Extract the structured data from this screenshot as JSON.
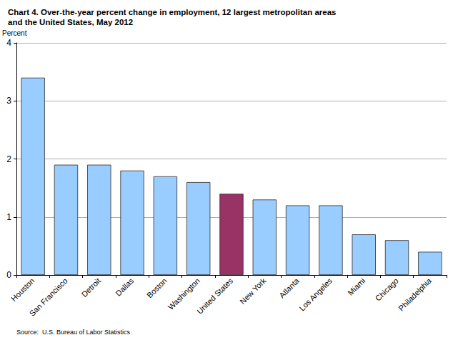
{
  "chart_data": {
    "type": "bar",
    "title": "Chart 4. Over-the-year percent change in employment, 12 largest metropolitan areas and the United States, May 2012",
    "y_label": "Percent",
    "source": "Source:  U.S. Bureau of Labor Statistics",
    "categories": [
      "Houston",
      "San Francisco",
      "Detroit",
      "Dallas",
      "Boston",
      "Washington",
      "United States",
      "New York",
      "Atlanta",
      "Los Angeles",
      "Miami",
      "Chicago",
      "Philadelphia"
    ],
    "values": [
      3.4,
      1.9,
      1.9,
      1.8,
      1.7,
      1.6,
      1.4,
      1.3,
      1.2,
      1.2,
      0.7,
      0.6,
      0.4
    ],
    "colors": [
      "#99ccff",
      "#99ccff",
      "#99ccff",
      "#99ccff",
      "#99ccff",
      "#99ccff",
      "#993366",
      "#99ccff",
      "#99ccff",
      "#99ccff",
      "#99ccff",
      "#99ccff",
      "#99ccff"
    ],
    "ylim": [
      0,
      4
    ],
    "yticks": [
      0,
      1,
      2,
      3,
      4
    ],
    "grid": true
  }
}
